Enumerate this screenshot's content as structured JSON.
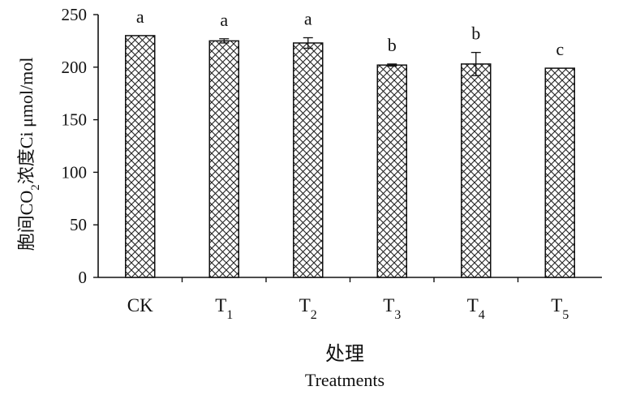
{
  "chart_data": {
    "type": "bar",
    "categories": [
      "CK",
      "T1",
      "T2",
      "T3",
      "T4",
      "T5"
    ],
    "category_labels": [
      {
        "base": "CK",
        "sub": ""
      },
      {
        "base": "T",
        "sub": "1"
      },
      {
        "base": "T",
        "sub": "2"
      },
      {
        "base": "T",
        "sub": "3"
      },
      {
        "base": "T",
        "sub": "4"
      },
      {
        "base": "T",
        "sub": "5"
      }
    ],
    "values": [
      230,
      225,
      223,
      202,
      203,
      199
    ],
    "errors": [
      0,
      2,
      5,
      1,
      11,
      0
    ],
    "significance_letters": [
      "a",
      "a",
      "a",
      "b",
      "b",
      "c"
    ],
    "ylim": [
      0,
      250
    ],
    "yticks": [
      0,
      50,
      100,
      150,
      200,
      250
    ],
    "ylabel": {
      "part1": "胞间CO",
      "sub": "2",
      "part2": "浓度Ci μmol/mol"
    },
    "xlabel_cn": "处理",
    "xlabel_en": "Treatments",
    "legend": "none",
    "grid": false,
    "bar_pattern": "crosshatch"
  }
}
